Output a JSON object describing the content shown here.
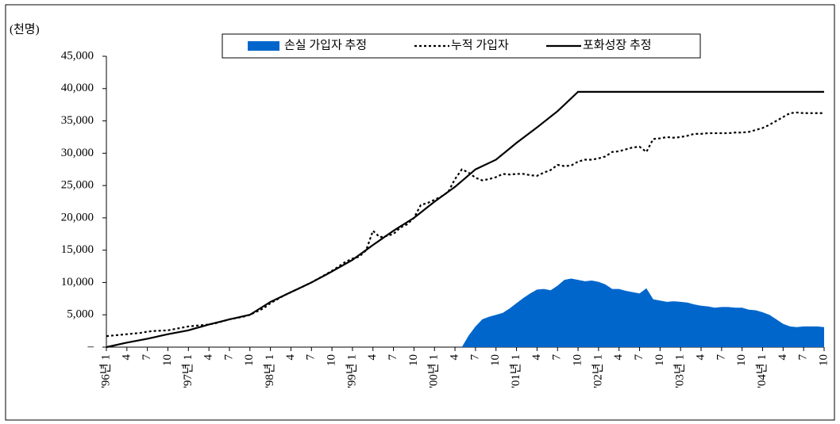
{
  "chart_data": {
    "type": "line",
    "y_unit_label": "(천명)",
    "categories": [
      "'96년 1",
      null,
      null,
      "4",
      null,
      null,
      "7",
      null,
      null,
      "10",
      null,
      null,
      "'97년 1",
      null,
      null,
      "4",
      null,
      null,
      "7",
      null,
      null,
      "10",
      null,
      null,
      "'98년 1",
      null,
      null,
      "4",
      null,
      null,
      "7",
      null,
      null,
      "10",
      null,
      null,
      "'99년 1",
      null,
      null,
      "4",
      null,
      null,
      "7",
      null,
      null,
      "10",
      null,
      null,
      "'00년 1",
      null,
      null,
      "4",
      null,
      null,
      "7",
      null,
      null,
      "10",
      null,
      null,
      "'01년 1",
      null,
      null,
      "4",
      null,
      null,
      "7",
      null,
      null,
      "10",
      null,
      null,
      "'02년 1",
      null,
      null,
      "4",
      null,
      null,
      "7",
      null,
      null,
      "10",
      null,
      null,
      "'03년 1",
      null,
      null,
      "4",
      null,
      null,
      "7",
      null,
      null,
      "10",
      null,
      null,
      "'04년 1",
      null,
      null,
      "4",
      null,
      null,
      "7",
      null,
      null,
      "10"
    ],
    "series": [
      {
        "name": "손실 가입자 추정",
        "kind": "area",
        "color": "#0066cc",
        "values": [
          0,
          0,
          0,
          0,
          0,
          0,
          0,
          0,
          0,
          0,
          0,
          0,
          0,
          0,
          0,
          0,
          0,
          0,
          0,
          0,
          0,
          0,
          0,
          0,
          0,
          0,
          0,
          0,
          0,
          0,
          0,
          0,
          0,
          0,
          0,
          0,
          0,
          0,
          0,
          0,
          0,
          0,
          0,
          0,
          0,
          0,
          0,
          0,
          0,
          0,
          0,
          0,
          0,
          1800,
          3200,
          4300,
          4700,
          5000,
          5300,
          6000,
          6800,
          7600,
          8300,
          8900,
          9000,
          8800,
          9500,
          10400,
          10600,
          10400,
          10200,
          10300,
          10100,
          9700,
          9000,
          9000,
          8700,
          8500,
          8300,
          9100,
          7400,
          7200,
          7000,
          7100,
          7000,
          6900,
          6600,
          6400,
          6300,
          6100,
          6200,
          6200,
          6100,
          6100,
          5800,
          5700,
          5400,
          5000,
          4300,
          3600,
          3200,
          3100,
          3200,
          3200,
          3200,
          3100
        ]
      },
      {
        "name": "누적 가입자",
        "kind": "dotted",
        "color": "#000000",
        "values": [
          1700,
          1800,
          1900,
          2000,
          2100,
          2200,
          2400,
          2500,
          2550,
          2600,
          2800,
          3000,
          3200,
          3300,
          3400,
          3500,
          3700,
          4000,
          4300,
          4500,
          4700,
          5000,
          5500,
          6000,
          6800,
          7400,
          8000,
          8500,
          9000,
          9500,
          10000,
          10600,
          11200,
          11800,
          12500,
          13200,
          13700,
          14000,
          15000,
          18000,
          17000,
          17200,
          17500,
          18500,
          19000,
          20000,
          22000,
          22300,
          22800,
          23300,
          24000,
          26000,
          27500,
          27000,
          26200,
          25800,
          26000,
          26300,
          26800,
          26700,
          26800,
          26800,
          26600,
          26500,
          27000,
          27400,
          28200,
          28000,
          28100,
          28700,
          29000,
          29000,
          29200,
          29500,
          30200,
          30300,
          30600,
          30900,
          31000,
          30200,
          32200,
          32300,
          32500,
          32400,
          32500,
          32700,
          33000,
          33000,
          33100,
          33100,
          33100,
          33100,
          33200,
          33200,
          33300,
          33600,
          33900,
          34400,
          35000,
          35600,
          36200,
          36300,
          36200,
          36200,
          36200,
          36200
        ]
      },
      {
        "name": "포화성장 추정",
        "kind": "solid",
        "color": "#000000",
        "values": [
          0,
          230,
          470,
          700,
          900,
          1100,
          1300,
          1530,
          1770,
          2000,
          2200,
          2400,
          2600,
          2900,
          3200,
          3500,
          3770,
          4030,
          4300,
          4530,
          4770,
          5000,
          5670,
          6330,
          7000,
          7500,
          8000,
          8500,
          9000,
          9500,
          10000,
          10570,
          11130,
          11700,
          12300,
          12900,
          13500,
          14270,
          15030,
          15800,
          16530,
          17270,
          18000,
          18670,
          19330,
          20000,
          20830,
          21670,
          22500,
          23270,
          24030,
          24800,
          25700,
          26600,
          27500,
          28000,
          28500,
          29000,
          29870,
          30730,
          31600,
          32400,
          33200,
          34000,
          34830,
          35670,
          36500,
          37500,
          38500,
          39500,
          39500,
          39500,
          39500,
          39500,
          39500,
          39500,
          39500,
          39500,
          39500,
          39500,
          39500,
          39500,
          39500,
          39500,
          39500,
          39500,
          39500,
          39500,
          39500,
          39500,
          39500,
          39500,
          39500,
          39500,
          39500,
          39500,
          39500,
          39500,
          39500,
          39500,
          39500,
          39500,
          39500,
          39500,
          39500,
          39500
        ]
      }
    ],
    "ylim": [
      0,
      45000
    ],
    "yticks": [
      {
        "value": 0,
        "label": "–"
      },
      {
        "value": 5000,
        "label": "5,000"
      },
      {
        "value": 10000,
        "label": "10,000"
      },
      {
        "value": 15000,
        "label": "15,000"
      },
      {
        "value": 20000,
        "label": "20,000"
      },
      {
        "value": 25000,
        "label": "25,000"
      },
      {
        "value": 30000,
        "label": "30,000"
      },
      {
        "value": 35000,
        "label": "35,000"
      },
      {
        "value": 40000,
        "label": "40,000"
      },
      {
        "value": 45000,
        "label": "45,000"
      }
    ],
    "grid": false,
    "legend": "top"
  }
}
